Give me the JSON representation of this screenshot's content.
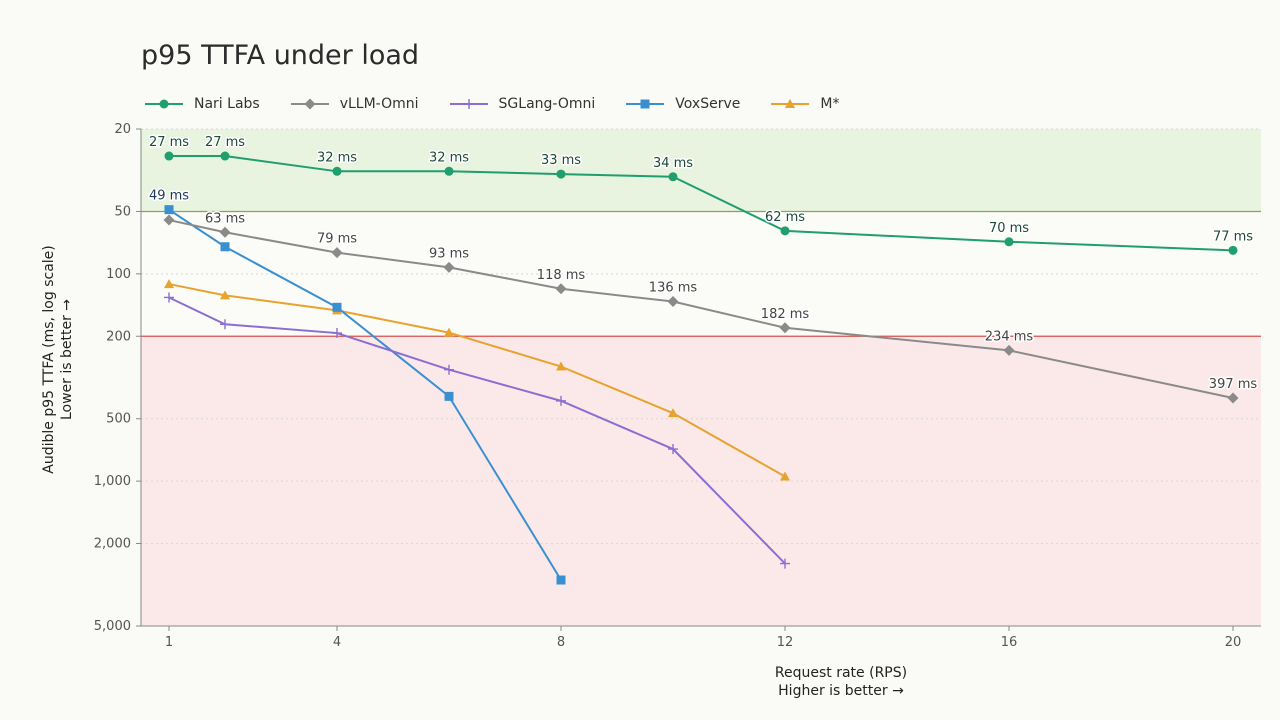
{
  "chart_data": {
    "type": "line",
    "title": "p95 TTFA under load",
    "xlabel": "Request rate (RPS)",
    "xlabel_note": "Higher is better →",
    "ylabel": "Audible p95 TTFA (ms, log scale)",
    "ylabel_note": "Lower is better →",
    "y_scale": "log",
    "y_inverted": true,
    "xlim": [
      0.5,
      20.5
    ],
    "ylim": [
      20,
      5000
    ],
    "x_ticks": [
      1,
      4,
      8,
      12,
      16,
      20
    ],
    "y_ticks": [
      20,
      50,
      100,
      200,
      500,
      1000,
      2000,
      5000
    ],
    "y_tick_labels": [
      "20",
      "50",
      "100",
      "200",
      "500",
      "1,000",
      "2,000",
      "5,000"
    ],
    "grid": "horizontal dotted",
    "legend_position": "top",
    "bands": [
      {
        "from": 20,
        "to": 50,
        "color": "#e8f3e0"
      },
      {
        "from": 200,
        "to": 5000,
        "color": "#fbe9e9"
      }
    ],
    "threshold_lines": [
      {
        "y": 50,
        "color": "#8aa64a"
      },
      {
        "y": 200,
        "color": "#d9534f"
      }
    ],
    "series": [
      {
        "name": "Nari Labs",
        "color": "#1f9e6e",
        "marker": "circle",
        "x": [
          1,
          2,
          4,
          6,
          8,
          10,
          12,
          16,
          20
        ],
        "y": [
          27,
          27,
          32,
          32,
          33,
          34,
          62,
          70,
          77
        ],
        "labels": [
          "27 ms",
          "27 ms",
          "32 ms",
          "32 ms",
          "33 ms",
          "34 ms",
          "62 ms",
          "70 ms",
          "77 ms"
        ],
        "label_color": "#1d4a3a"
      },
      {
        "name": "vLLM-Omni",
        "color": "#8a8a8a",
        "marker": "diamond",
        "x": [
          1,
          2,
          4,
          6,
          8,
          10,
          12,
          16,
          20
        ],
        "y": [
          55,
          63,
          79,
          93,
          118,
          136,
          182,
          234,
          397
        ],
        "labels": [
          "",
          "63 ms",
          "79 ms",
          "93 ms",
          "118 ms",
          "136 ms",
          "182 ms",
          "234 ms",
          "397 ms"
        ],
        "label_color": "#444444"
      },
      {
        "name": "SGLang-Omni",
        "color": "#8a6fd1",
        "marker": "plus",
        "x": [
          1,
          2,
          4,
          6,
          8,
          10,
          12
        ],
        "y": [
          130,
          175,
          193,
          290,
          410,
          700,
          2500
        ],
        "labels": []
      },
      {
        "name": "VoxServe",
        "color": "#3a8fd1",
        "marker": "square",
        "x": [
          1,
          2,
          4,
          6,
          8
        ],
        "y": [
          49,
          74,
          145,
          390,
          3000
        ],
        "labels": [
          "49 ms",
          "",
          "",
          "",
          ""
        ],
        "label_color": "#1d3a5a"
      },
      {
        "name": "M*",
        "color": "#e8a22e",
        "marker": "triangle",
        "x": [
          1,
          2,
          4,
          6,
          8,
          10,
          12
        ],
        "y": [
          112,
          127,
          150,
          192,
          280,
          470,
          950
        ],
        "labels": []
      }
    ]
  }
}
